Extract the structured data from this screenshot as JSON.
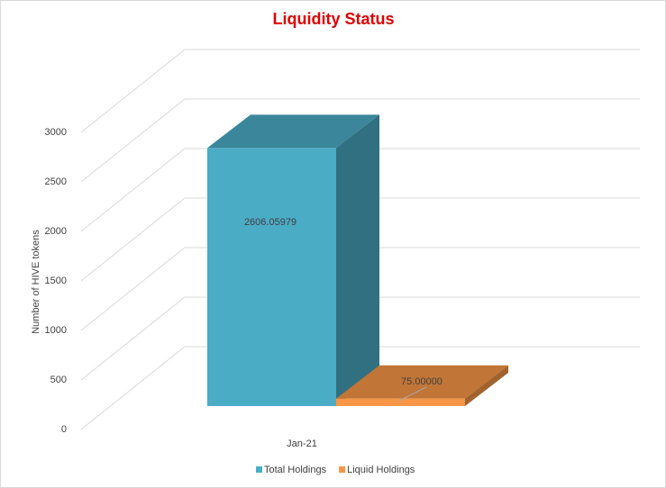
{
  "chart_data": {
    "type": "bar",
    "title": "Liquidity Status",
    "y_label": "Number of HIVE tokens",
    "categories": [
      "Jan-21"
    ],
    "series": [
      {
        "name": "Total Holdings",
        "color": "#4bacc6",
        "values": [
          2606.05979
        ],
        "value_labels": [
          "2606.05979"
        ]
      },
      {
        "name": "Liquid Holdings",
        "color": "#f79646",
        "values": [
          75
        ],
        "value_labels": [
          "75.00000"
        ]
      }
    ],
    "ylim": [
      0,
      3000
    ],
    "yticks": [
      0,
      500,
      1000,
      1500,
      2000,
      2500,
      3000
    ],
    "grid": true,
    "legend": "bottom"
  }
}
